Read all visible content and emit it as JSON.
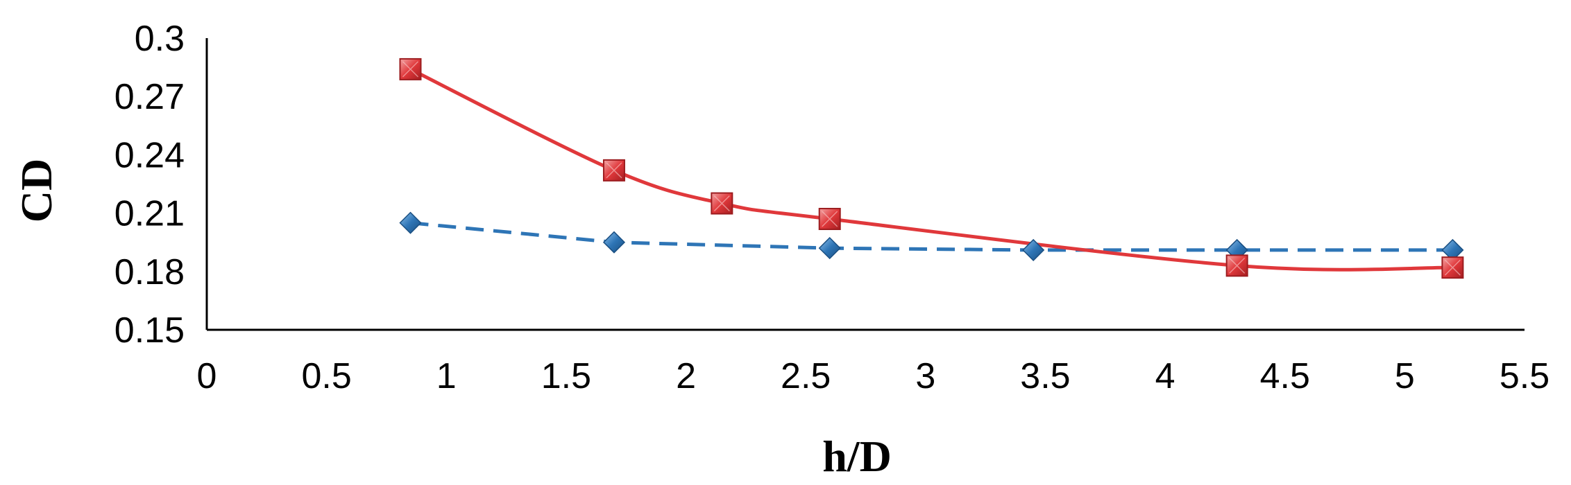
{
  "chart_data": {
    "type": "line",
    "title": "",
    "xlabel": "h/D",
    "ylabel": "CD",
    "xlim": [
      0,
      5.5
    ],
    "ylim": [
      0.15,
      0.3
    ],
    "xticks": [
      0,
      0.5,
      1,
      1.5,
      2,
      2.5,
      3,
      3.5,
      4,
      4.5,
      5,
      5.5
    ],
    "xtick_labels": [
      "0",
      "0.5",
      "1",
      "1.5",
      "2",
      "2.5",
      "3",
      "3.5",
      "4",
      "4.5",
      "5",
      "5.5"
    ],
    "yticks": [
      0.15,
      0.18,
      0.21,
      0.24,
      0.27,
      0.3
    ],
    "ytick_labels": [
      "0.15",
      "0.18",
      "0.21",
      "0.24",
      "0.27",
      "0.3"
    ],
    "grid": false,
    "legend": "none",
    "series": [
      {
        "color": "#2e75b6",
        "marker": "diamond",
        "line_style": "dashed",
        "x": [
          0.85,
          1.7,
          2.6,
          3.45,
          4.3,
          5.2
        ],
        "y": [
          0.205,
          0.195,
          0.192,
          0.191,
          0.191,
          0.191
        ]
      },
      {
        "color": "#e0383b",
        "marker": "square",
        "line_style": "smooth",
        "x": [
          0.85,
          1.7,
          2.15,
          2.6,
          4.3,
          5.2
        ],
        "y": [
          0.284,
          0.232,
          0.215,
          0.207,
          0.183,
          0.182
        ]
      }
    ]
  }
}
